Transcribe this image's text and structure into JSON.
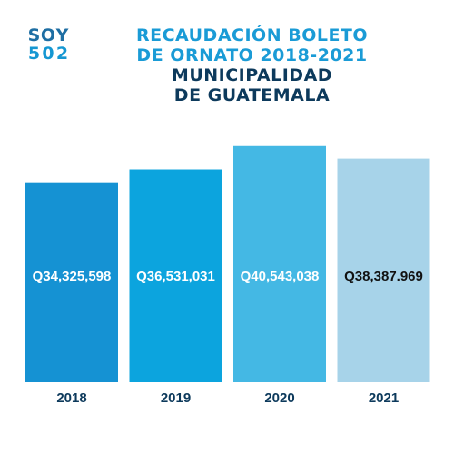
{
  "logo": {
    "chars": [
      "S",
      "O",
      "Y",
      "5",
      "0",
      "2"
    ]
  },
  "title_lines": [
    "RECAUDACIÓN BOLETO",
    "DE ORNATO 2018-2021"
  ],
  "subtitle_lines": [
    "MUNICIPALIDAD",
    "DE GUATEMALA"
  ],
  "colors": {
    "title": "#1a9bd6",
    "subtitle": "#0d3a5c",
    "category_label": "#0d3a5c",
    "logo_top": "#1e6ea3",
    "logo_bottom": "#1597d2"
  },
  "chart_data": {
    "type": "bar",
    "categories": [
      "2018",
      "2019",
      "2020",
      "2021"
    ],
    "values": [
      34325598,
      36531031,
      40543038,
      38387969
    ],
    "value_labels": [
      "Q34,325,598",
      "Q36,531,031",
      "Q40,543,038",
      "Q38,387.969"
    ],
    "bar_colors": [
      "#1592d3",
      "#0ca4de",
      "#44b8e4",
      "#a7d3e9"
    ],
    "label_colors": [
      "#ffffff",
      "#ffffff",
      "#ffffff",
      "#111111"
    ],
    "ylim": [
      0,
      43000000
    ],
    "grid": false,
    "legend": "none"
  }
}
